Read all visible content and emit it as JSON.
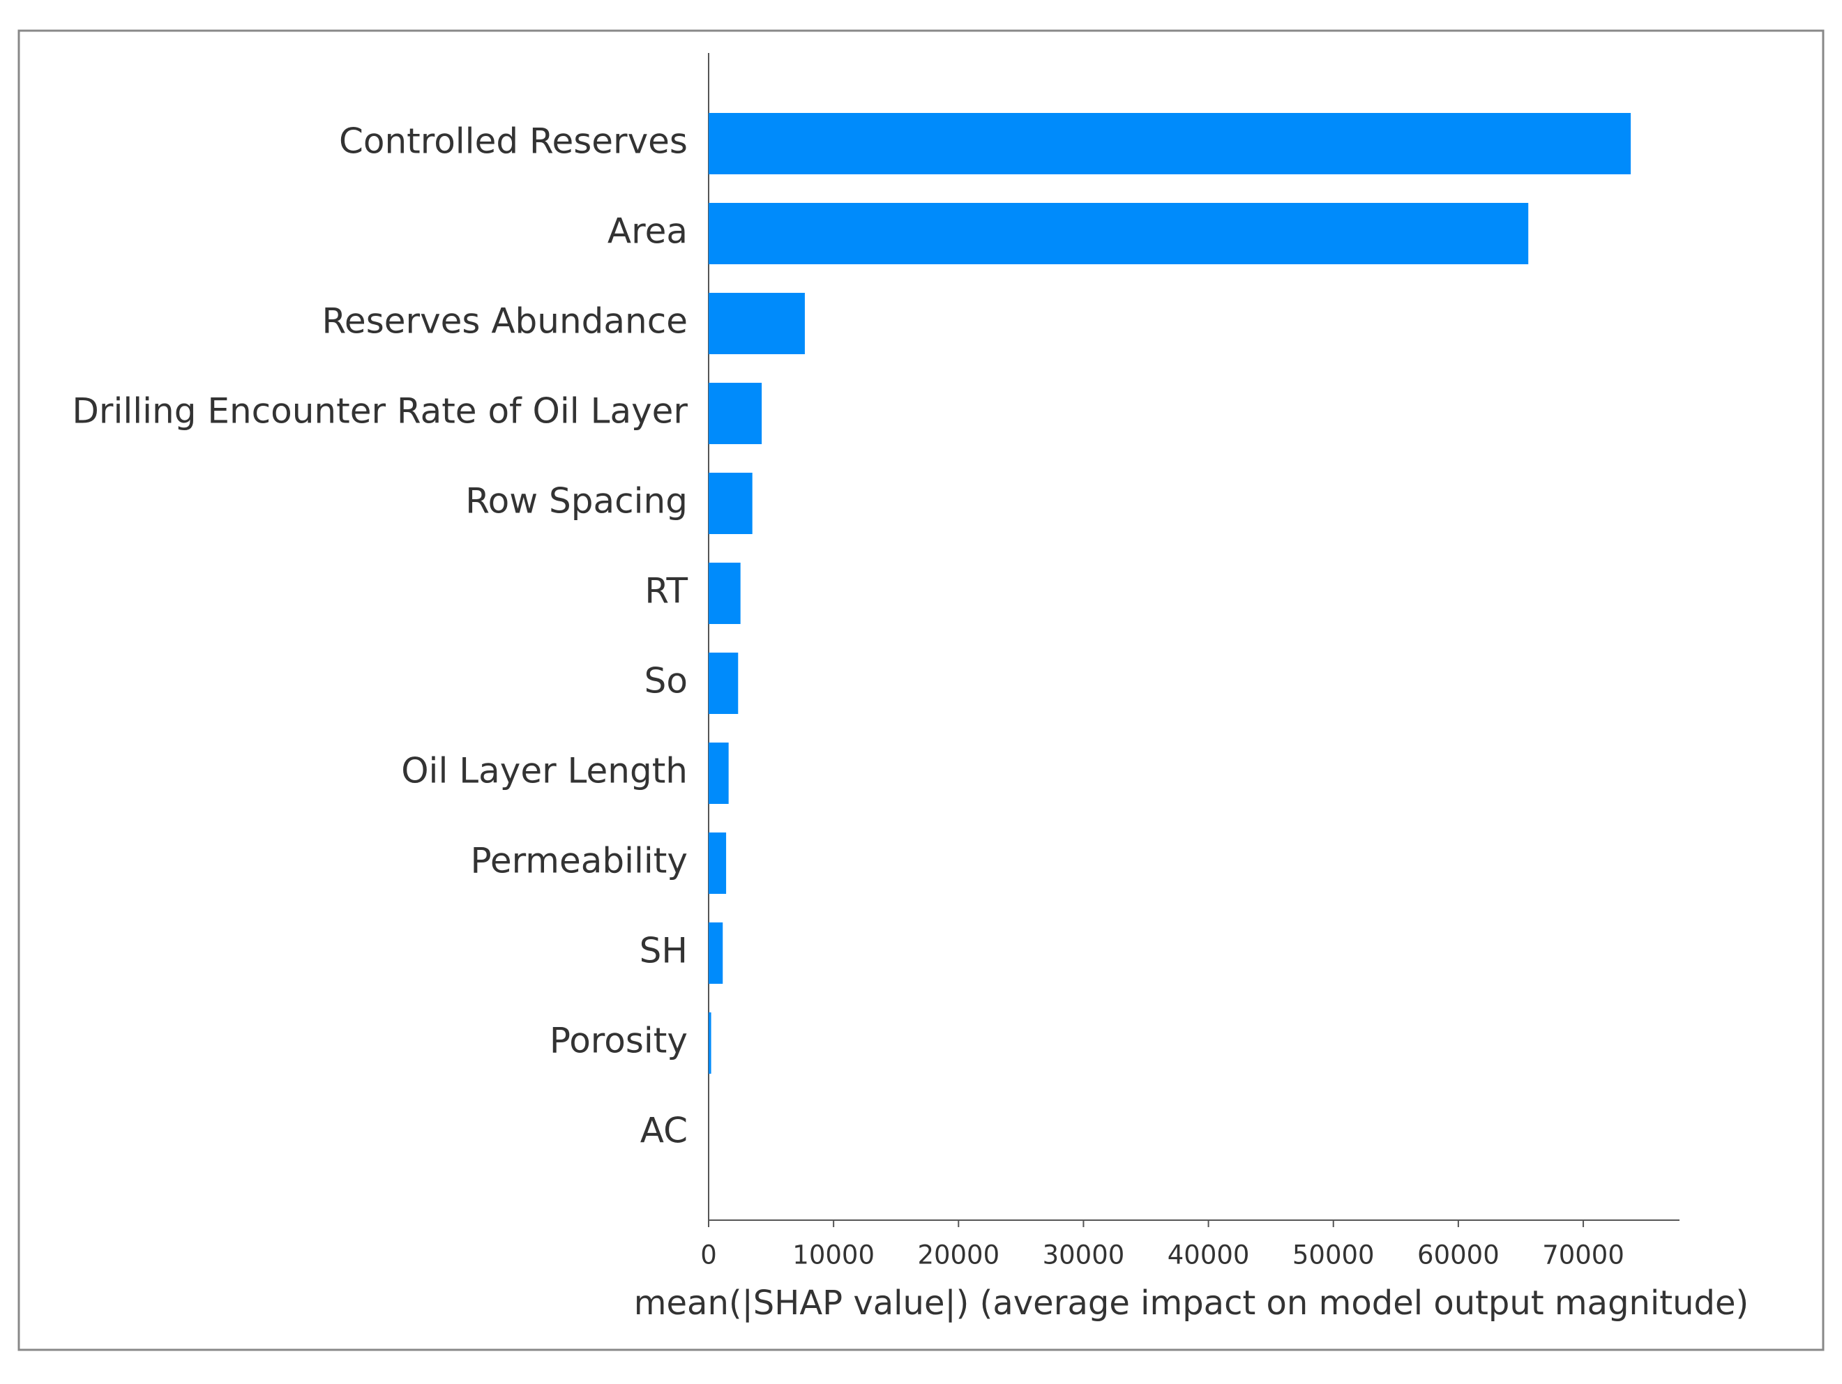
{
  "chart_data": {
    "type": "bar",
    "orientation": "horizontal",
    "categories": [
      "Controlled Reserves",
      "Area",
      "Reserves Abundance",
      "Drilling Encounter Rate of Oil Layer",
      "Row Spacing",
      "RT",
      "So",
      "Oil Layer Length",
      "Permeability",
      "SH",
      "Porosity",
      "AC"
    ],
    "values": [
      73800,
      65600,
      7700,
      4250,
      3500,
      2550,
      2360,
      1600,
      1400,
      1130,
      200,
      0
    ],
    "color": "#008bfb",
    "xlabel": "mean(|SHAP value|) (average impact on model output magnitude)",
    "xlim": [
      0,
      77700
    ],
    "xticks": [
      0,
      10000,
      20000,
      30000,
      40000,
      50000,
      60000,
      70000
    ]
  }
}
